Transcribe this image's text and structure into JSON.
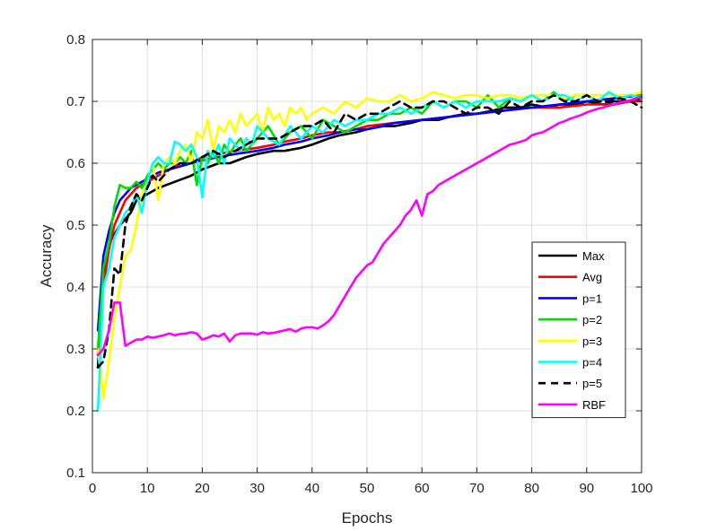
{
  "chart_data": {
    "type": "line",
    "title": "",
    "xlabel": "Epochs",
    "ylabel": "Accuracy",
    "xlim": [
      0,
      100
    ],
    "ylim": [
      0.1,
      0.8
    ],
    "xticks": [
      0,
      10,
      20,
      30,
      40,
      50,
      60,
      70,
      80,
      90,
      100
    ],
    "yticks": [
      0.1,
      0.2,
      0.3,
      0.4,
      0.5,
      0.6,
      0.7,
      0.8
    ],
    "grid": true,
    "legend_position": "right",
    "series": [
      {
        "name": "Max",
        "color": "#000000",
        "dash": false,
        "x": [
          1,
          2,
          3,
          5,
          7,
          8,
          10,
          12,
          15,
          18,
          20,
          23,
          25,
          28,
          30,
          33,
          35,
          38,
          40,
          43,
          45,
          48,
          50,
          53,
          55,
          58,
          60,
          63,
          65,
          68,
          70,
          73,
          75,
          78,
          80,
          83,
          85,
          88,
          90,
          93,
          95,
          98,
          100
        ],
        "y": [
          0.27,
          0.42,
          0.47,
          0.5,
          0.52,
          0.54,
          0.55,
          0.56,
          0.57,
          0.58,
          0.59,
          0.6,
          0.6,
          0.61,
          0.615,
          0.62,
          0.62,
          0.625,
          0.63,
          0.64,
          0.645,
          0.65,
          0.655,
          0.66,
          0.66,
          0.665,
          0.67,
          0.67,
          0.675,
          0.68,
          0.68,
          0.685,
          0.69,
          0.69,
          0.695,
          0.69,
          0.695,
          0.695,
          0.7,
          0.695,
          0.7,
          0.7,
          0.705
        ]
      },
      {
        "name": "Avg",
        "color": "#ff0000",
        "dash": false,
        "x": [
          1,
          2,
          3,
          4,
          5,
          6,
          7,
          8,
          10,
          12,
          14,
          16,
          18,
          20,
          23,
          26,
          30,
          33,
          35,
          38,
          40,
          43,
          45,
          48,
          50,
          55,
          60,
          65,
          70,
          75,
          80,
          85,
          90,
          95,
          98,
          100
        ],
        "y": [
          0.29,
          0.4,
          0.46,
          0.5,
          0.52,
          0.54,
          0.55,
          0.56,
          0.57,
          0.58,
          0.59,
          0.6,
          0.6,
          0.61,
          0.615,
          0.62,
          0.625,
          0.63,
          0.635,
          0.64,
          0.645,
          0.65,
          0.65,
          0.655,
          0.66,
          0.665,
          0.67,
          0.675,
          0.68,
          0.685,
          0.69,
          0.69,
          0.695,
          0.695,
          0.7,
          0.7
        ]
      },
      {
        "name": "p=1",
        "color": "#0000ff",
        "dash": false,
        "x": [
          1,
          2,
          3,
          4,
          5,
          6,
          7,
          8,
          10,
          12,
          14,
          16,
          18,
          20,
          23,
          26,
          30,
          33,
          35,
          38,
          40,
          43,
          45,
          48,
          50,
          55,
          60,
          65,
          70,
          75,
          80,
          85,
          90,
          95,
          100
        ],
        "y": [
          0.33,
          0.45,
          0.49,
          0.52,
          0.54,
          0.55,
          0.56,
          0.565,
          0.575,
          0.585,
          0.59,
          0.595,
          0.6,
          0.605,
          0.61,
          0.615,
          0.62,
          0.625,
          0.63,
          0.635,
          0.64,
          0.645,
          0.65,
          0.655,
          0.655,
          0.665,
          0.67,
          0.675,
          0.68,
          0.685,
          0.69,
          0.695,
          0.7,
          0.705,
          0.71
        ]
      },
      {
        "name": "p=2",
        "color": "#00dd00",
        "dash": false,
        "x": [
          1,
          2,
          3,
          4,
          5,
          6,
          7,
          8,
          9,
          10,
          11,
          12,
          13,
          14,
          15,
          16,
          17,
          18,
          19,
          20,
          21,
          22,
          23,
          24,
          25,
          26,
          27,
          28,
          29,
          30,
          32,
          34,
          36,
          38,
          40,
          42,
          44,
          46,
          48,
          50,
          52,
          54,
          56,
          58,
          60,
          62,
          64,
          66,
          68,
          70,
          72,
          74,
          76,
          78,
          80,
          82,
          84,
          86,
          88,
          90,
          92,
          94,
          96,
          98,
          100
        ],
        "y": [
          0.3,
          0.43,
          0.47,
          0.53,
          0.565,
          0.56,
          0.56,
          0.57,
          0.56,
          0.58,
          0.59,
          0.6,
          0.59,
          0.6,
          0.6,
          0.61,
          0.6,
          0.62,
          0.565,
          0.61,
          0.6,
          0.62,
          0.6,
          0.63,
          0.615,
          0.63,
          0.64,
          0.62,
          0.63,
          0.64,
          0.66,
          0.63,
          0.65,
          0.66,
          0.64,
          0.67,
          0.66,
          0.65,
          0.66,
          0.67,
          0.67,
          0.68,
          0.68,
          0.69,
          0.68,
          0.7,
          0.69,
          0.7,
          0.7,
          0.69,
          0.71,
          0.69,
          0.705,
          0.7,
          0.71,
          0.7,
          0.715,
          0.7,
          0.71,
          0.71,
          0.7,
          0.715,
          0.705,
          0.71,
          0.71
        ]
      },
      {
        "name": "p=3",
        "color": "#ffff00",
        "dash": false,
        "x": [
          1,
          2,
          3,
          4,
          5,
          6,
          7,
          8,
          9,
          10,
          11,
          12,
          13,
          14,
          15,
          16,
          17,
          18,
          19,
          20,
          21,
          22,
          23,
          24,
          25,
          26,
          27,
          28,
          29,
          30,
          31,
          32,
          33,
          34,
          35,
          36,
          37,
          38,
          39,
          40,
          42,
          44,
          46,
          48,
          50,
          52,
          54,
          56,
          58,
          60,
          62,
          64,
          66,
          68,
          70,
          72,
          74,
          76,
          78,
          80,
          82,
          84,
          86,
          88,
          90,
          92,
          94,
          96,
          98,
          100
        ],
        "y": [
          0.3,
          0.22,
          0.28,
          0.35,
          0.4,
          0.45,
          0.46,
          0.5,
          0.55,
          0.57,
          0.6,
          0.54,
          0.6,
          0.61,
          0.6,
          0.62,
          0.63,
          0.6,
          0.65,
          0.64,
          0.67,
          0.62,
          0.66,
          0.65,
          0.67,
          0.65,
          0.68,
          0.66,
          0.67,
          0.68,
          0.65,
          0.69,
          0.67,
          0.68,
          0.66,
          0.69,
          0.68,
          0.69,
          0.67,
          0.68,
          0.69,
          0.68,
          0.7,
          0.69,
          0.705,
          0.7,
          0.7,
          0.71,
          0.7,
          0.705,
          0.715,
          0.71,
          0.705,
          0.71,
          0.71,
          0.705,
          0.71,
          0.71,
          0.705,
          0.71,
          0.71,
          0.71,
          0.705,
          0.71,
          0.71,
          0.71,
          0.71,
          0.71,
          0.71,
          0.715
        ]
      },
      {
        "name": "p=4",
        "color": "#00ffff",
        "dash": false,
        "x": [
          1,
          2,
          3,
          4,
          5,
          6,
          7,
          8,
          9,
          10,
          11,
          12,
          13,
          14,
          15,
          16,
          17,
          18,
          19,
          20,
          21,
          22,
          23,
          24,
          25,
          26,
          27,
          28,
          29,
          30,
          32,
          34,
          36,
          38,
          40,
          42,
          44,
          46,
          48,
          50,
          52,
          54,
          56,
          58,
          60,
          62,
          64,
          66,
          68,
          70,
          72,
          74,
          76,
          78,
          80,
          82,
          84,
          86,
          88,
          90,
          92,
          94,
          96,
          98,
          100
        ],
        "y": [
          0.2,
          0.4,
          0.43,
          0.48,
          0.5,
          0.52,
          0.53,
          0.55,
          0.52,
          0.57,
          0.6,
          0.61,
          0.6,
          0.6,
          0.635,
          0.63,
          0.62,
          0.63,
          0.61,
          0.545,
          0.62,
          0.61,
          0.63,
          0.6,
          0.64,
          0.63,
          0.62,
          0.64,
          0.63,
          0.66,
          0.64,
          0.63,
          0.66,
          0.64,
          0.66,
          0.65,
          0.67,
          0.66,
          0.67,
          0.67,
          0.68,
          0.68,
          0.69,
          0.68,
          0.69,
          0.7,
          0.69,
          0.7,
          0.69,
          0.7,
          0.7,
          0.7,
          0.705,
          0.7,
          0.71,
          0.7,
          0.71,
          0.71,
          0.7,
          0.71,
          0.7,
          0.715,
          0.705,
          0.71,
          0.705
        ]
      },
      {
        "name": "p=5",
        "color": "#000000",
        "dash": true,
        "x": [
          1,
          2,
          3,
          4,
          5,
          6,
          7,
          8,
          9,
          10,
          11,
          12,
          14,
          16,
          18,
          20,
          22,
          24,
          26,
          28,
          30,
          32,
          34,
          36,
          38,
          40,
          42,
          44,
          46,
          48,
          50,
          52,
          54,
          56,
          58,
          60,
          62,
          64,
          66,
          68,
          70,
          72,
          74,
          76,
          78,
          80,
          82,
          84,
          86,
          88,
          90,
          92,
          94,
          96,
          98,
          100
        ],
        "y": [
          0.27,
          0.28,
          0.33,
          0.43,
          0.42,
          0.5,
          0.53,
          0.55,
          0.54,
          0.56,
          0.58,
          0.57,
          0.59,
          0.6,
          0.6,
          0.61,
          0.62,
          0.61,
          0.62,
          0.63,
          0.64,
          0.64,
          0.64,
          0.65,
          0.66,
          0.66,
          0.67,
          0.65,
          0.68,
          0.67,
          0.68,
          0.68,
          0.69,
          0.7,
          0.69,
          0.69,
          0.7,
          0.7,
          0.69,
          0.68,
          0.69,
          0.69,
          0.68,
          0.7,
          0.69,
          0.7,
          0.7,
          0.71,
          0.7,
          0.7,
          0.71,
          0.7,
          0.7,
          0.705,
          0.7,
          0.69
        ]
      },
      {
        "name": "RBF",
        "color": "#ff00ff",
        "dash": false,
        "x": [
          1,
          2,
          3,
          4,
          5,
          6,
          7,
          8,
          9,
          10,
          11,
          12,
          13,
          14,
          15,
          16,
          17,
          18,
          19,
          20,
          21,
          22,
          23,
          24,
          25,
          26,
          27,
          28,
          29,
          30,
          31,
          32,
          33,
          34,
          35,
          36,
          37,
          38,
          39,
          40,
          41,
          42,
          43,
          44,
          45,
          46,
          47,
          48,
          49,
          50,
          51,
          52,
          53,
          54,
          55,
          56,
          57,
          58,
          59,
          60,
          61,
          62,
          63,
          64,
          65,
          66,
          67,
          68,
          69,
          70,
          71,
          72,
          73,
          74,
          75,
          76,
          77,
          78,
          79,
          80,
          81,
          82,
          83,
          84,
          85,
          86,
          87,
          88,
          89,
          90,
          91,
          92,
          93,
          94,
          95,
          96,
          97,
          98,
          99,
          100
        ],
        "y": [
          0.29,
          0.3,
          0.33,
          0.375,
          0.375,
          0.305,
          0.31,
          0.315,
          0.315,
          0.32,
          0.318,
          0.32,
          0.322,
          0.325,
          0.322,
          0.324,
          0.325,
          0.327,
          0.325,
          0.315,
          0.318,
          0.322,
          0.32,
          0.325,
          0.312,
          0.322,
          0.325,
          0.325,
          0.325,
          0.323,
          0.327,
          0.325,
          0.326,
          0.328,
          0.33,
          0.332,
          0.328,
          0.333,
          0.335,
          0.335,
          0.333,
          0.338,
          0.345,
          0.355,
          0.37,
          0.385,
          0.4,
          0.415,
          0.425,
          0.435,
          0.44,
          0.455,
          0.47,
          0.48,
          0.49,
          0.5,
          0.515,
          0.525,
          0.54,
          0.515,
          0.55,
          0.555,
          0.565,
          0.57,
          0.575,
          0.58,
          0.585,
          0.59,
          0.595,
          0.6,
          0.605,
          0.61,
          0.615,
          0.62,
          0.625,
          0.63,
          0.632,
          0.635,
          0.638,
          0.645,
          0.648,
          0.65,
          0.655,
          0.66,
          0.665,
          0.668,
          0.672,
          0.675,
          0.678,
          0.682,
          0.685,
          0.688,
          0.69,
          0.693,
          0.695,
          0.698,
          0.7,
          0.702,
          0.705,
          0.707
        ]
      }
    ]
  }
}
